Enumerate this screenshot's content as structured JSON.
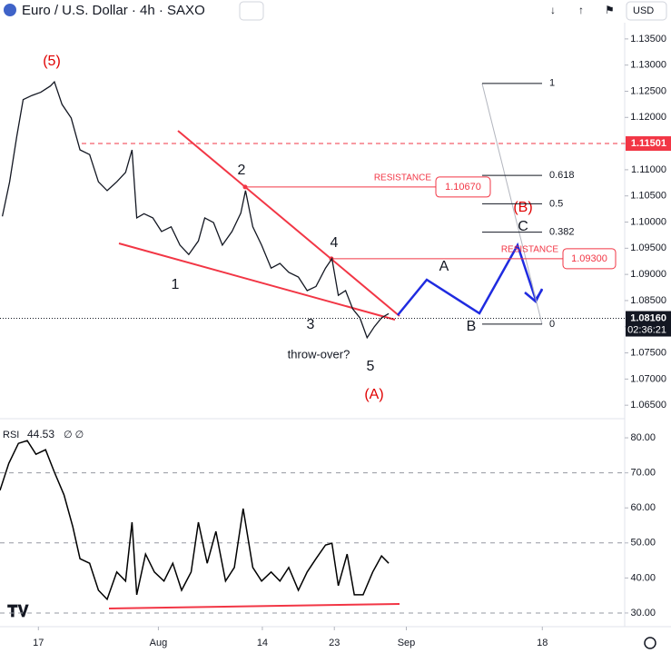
{
  "header": {
    "title": "Euro / U.S. Dollar · 4h · SAXO",
    "currency": "USD"
  },
  "chart_data": [
    {
      "type": "line",
      "title": "EURUSD",
      "color": "#131722",
      "x": [
        12.5,
        13.4,
        14.3,
        15.1,
        16.2,
        17.3,
        18.5,
        19.0,
        19.95,
        21.1,
        22.2,
        23.4,
        24.5,
        25.6,
        26.8,
        27.9,
        28.7,
        29.3,
        30.2,
        31.3,
        32.4,
        33.6,
        34.7,
        35.8,
        37.0,
        37.8,
        38.9,
        40.0,
        41.2,
        42.3,
        42.9,
        43.8,
        44.9,
        46.1,
        47.2,
        48.3,
        49.5,
        50.6,
        51.7,
        52.9,
        53.7,
        54.5,
        55.4,
        56.3,
        57.2,
        58.1,
        59.0,
        59.9,
        60.8
      ],
      "values": [
        1.1011,
        1.1077,
        1.1164,
        1.1234,
        1.1242,
        1.1248,
        1.126,
        1.1268,
        1.1225,
        1.1199,
        1.1138,
        1.1129,
        1.1077,
        1.106,
        1.1077,
        1.1095,
        1.1138,
        1.1008,
        1.1016,
        1.1008,
        1.0982,
        1.0991,
        1.0956,
        1.0938,
        1.0964,
        1.1008,
        1.0999,
        1.0956,
        1.0982,
        1.1017,
        1.106,
        1.0991,
        1.0956,
        1.0912,
        1.0921,
        1.0904,
        1.0895,
        1.0869,
        1.0877,
        1.0912,
        1.093,
        1.086,
        1.0869,
        1.0834,
        1.0817,
        1.0779,
        1.08,
        1.0817,
        1.0825
      ],
      "xlim": [
        12.2,
        90.3
      ],
      "xticks": [
        {
          "value": 17,
          "label": "17"
        },
        {
          "value": 32,
          "label": "Aug"
        },
        {
          "value": 45,
          "label": "14"
        },
        {
          "value": 54,
          "label": "23"
        },
        {
          "value": 63,
          "label": "Sep"
        },
        {
          "value": 80,
          "label": "18"
        }
      ],
      "ylim": [
        1.0626,
        1.1381
      ],
      "yticks": [
        {
          "value": 1.135,
          "label": "1.13500"
        },
        {
          "value": 1.13,
          "label": "1.13000"
        },
        {
          "value": 1.125,
          "label": "1.12500"
        },
        {
          "value": 1.12,
          "label": "1.12000"
        },
        {
          "value": 1.115,
          "label": "1.11500"
        },
        {
          "value": 1.11,
          "label": "1.11000"
        },
        {
          "value": 1.105,
          "label": "1.10500"
        },
        {
          "value": 1.1,
          "label": "1.10000"
        },
        {
          "value": 1.095,
          "label": "1.09500"
        },
        {
          "value": 1.09,
          "label": "1.09000"
        },
        {
          "value": 1.085,
          "label": "1.08500"
        },
        {
          "value": 1.08,
          "label": "1.08000"
        },
        {
          "value": 1.075,
          "label": "1.07500"
        },
        {
          "value": 1.07,
          "label": "1.07000"
        },
        {
          "value": 1.065,
          "label": "1.06500"
        }
      ],
      "high_level": {
        "value": 1.11501,
        "label": "1.11501"
      },
      "last_price": {
        "value": 1.0816,
        "label": "1.08160",
        "countdown": "02:36:21"
      },
      "resistance": [
        {
          "text": "RESISTANCE",
          "value": 1.1067,
          "label": "1.10670"
        },
        {
          "text": "RESISTANCE",
          "value": 1.093,
          "label": "1.09300"
        }
      ],
      "fib": {
        "start": 1.0805,
        "end": 1.1265,
        "levels": [
          1,
          0.618,
          0.5,
          0.382,
          0
        ]
      },
      "annotations": {
        "w5": "(5)",
        "w1": "1",
        "w2": "2",
        "w3": "3",
        "w4": "4",
        "w5b": "5",
        "wA": "(A)",
        "throw": "throw-over?",
        "a": "A",
        "b": "B",
        "c": "C",
        "wB": "(B)"
      }
    },
    {
      "type": "line",
      "title": "RSI",
      "value_label": "44.53",
      "extras": "∅ ∅",
      "color": "#000000",
      "x": [
        12.2,
        13.3,
        14.5,
        15.6,
        16.7,
        17.9,
        19.0,
        20.2,
        21.3,
        22.2,
        23.4,
        24.5,
        25.6,
        26.8,
        27.9,
        28.7,
        29.3,
        30.4,
        31.5,
        32.7,
        33.8,
        34.9,
        36.1,
        37.0,
        38.1,
        39.2,
        40.4,
        41.5,
        42.6,
        43.8,
        44.9,
        46.1,
        47.2,
        48.3,
        49.5,
        50.6,
        51.7,
        52.9,
        53.7,
        54.5,
        55.6,
        56.5,
        57.6,
        58.8,
        59.9,
        60.8
      ],
      "values": [
        65.0,
        72.7,
        78.4,
        79.2,
        75.3,
        76.6,
        70.2,
        63.7,
        54.6,
        45.5,
        44.2,
        36.5,
        33.9,
        41.7,
        39.1,
        55.9,
        35.2,
        46.8,
        41.7,
        39.1,
        44.2,
        36.5,
        41.7,
        55.9,
        44.2,
        53.3,
        39.1,
        43.0,
        59.8,
        43.0,
        39.1,
        41.7,
        39.1,
        43.0,
        36.5,
        41.7,
        45.5,
        49.4,
        49.9,
        37.8,
        46.8,
        35.2,
        35.2,
        41.7,
        46.3,
        44.2
      ],
      "xlim": [
        12.2,
        90.3
      ],
      "ylim": [
        26.1,
        85.2
      ],
      "yticks": [
        {
          "value": 80,
          "label": "80.00"
        },
        {
          "value": 70,
          "label": "70.00"
        },
        {
          "value": 60,
          "label": "60.00"
        },
        {
          "value": 50,
          "label": "50.00"
        },
        {
          "value": 40,
          "label": "40.00"
        },
        {
          "value": 30,
          "label": "30.00"
        }
      ],
      "guides": [
        70,
        50,
        30
      ]
    }
  ]
}
